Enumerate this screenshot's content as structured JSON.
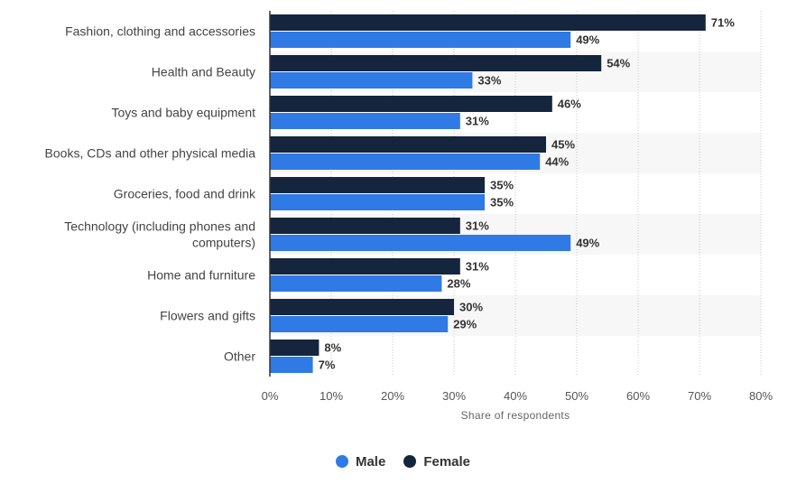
{
  "chart_data": {
    "type": "bar",
    "orientation": "horizontal",
    "categories": [
      "Fashion, clothing and accessories",
      "Health and Beauty",
      "Toys and baby equipment",
      "Books, CDs and other physical media",
      "Groceries, food and drink",
      "Technology (including phones and computers)",
      "Home and furniture",
      "Flowers and gifts",
      "Other"
    ],
    "series": [
      {
        "name": "Female",
        "color": "#14253d",
        "values": [
          71,
          54,
          46,
          45,
          35,
          31,
          31,
          30,
          8
        ]
      },
      {
        "name": "Male",
        "color": "#2f7ae5",
        "values": [
          49,
          33,
          31,
          44,
          35,
          49,
          28,
          29,
          7
        ]
      }
    ],
    "value_suffix": "%",
    "xlabel": "Share of respondents",
    "ylabel": "",
    "xlim": [
      0,
      80
    ],
    "xticks": [
      0,
      10,
      20,
      30,
      40,
      50,
      60,
      70,
      80
    ],
    "xtick_labels": [
      "0%",
      "10%",
      "20%",
      "30%",
      "40%",
      "50%",
      "60%",
      "70%",
      "80%"
    ],
    "grid": true,
    "data_labels": true,
    "legend_position": "bottom-center"
  },
  "legend": {
    "items": [
      {
        "label": "Male",
        "color": "#2f7ae5"
      },
      {
        "label": "Female",
        "color": "#14253d"
      }
    ]
  }
}
